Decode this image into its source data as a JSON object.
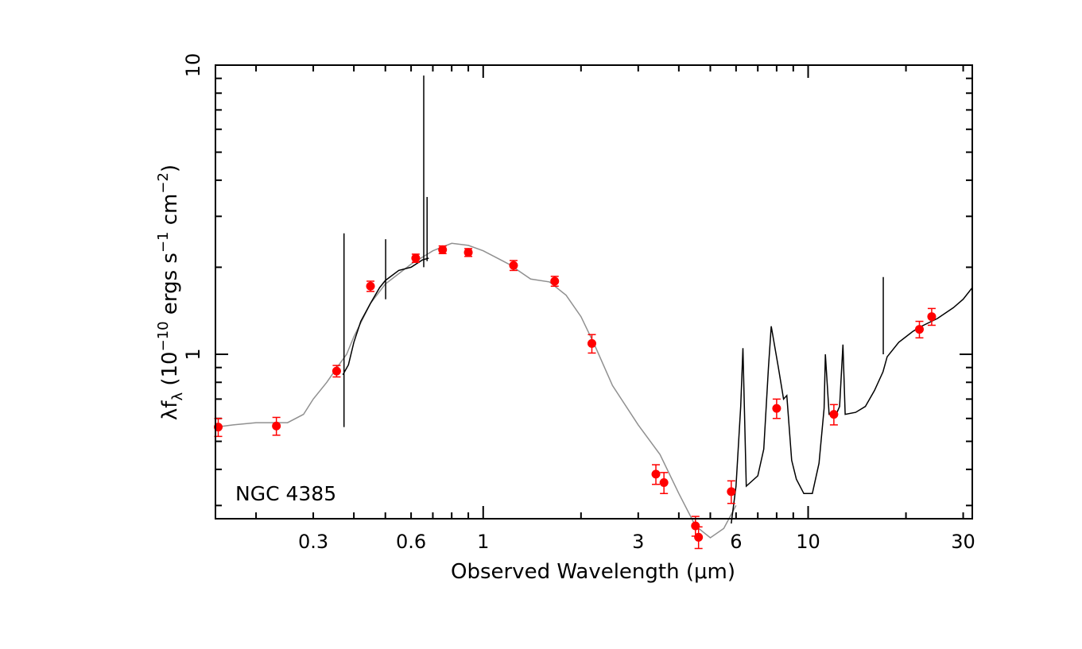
{
  "chart_data": {
    "type": "scatter",
    "title": "",
    "annotation": "NGC 4385",
    "xlabel": "Observed Wavelength (μm)",
    "ylabel": {
      "base": "λf",
      "base_sub": "λ",
      "open": " (10",
      "exp1": "−10",
      "mid": " ergs s",
      "exp2": "−1",
      "mid2": " cm",
      "exp3": "−2",
      "close": ")"
    },
    "x_scale": "log",
    "y_scale": "log",
    "xlim": [
      0.15,
      32
    ],
    "ylim": [
      0.27,
      10
    ],
    "x_tick_labels": [
      {
        "value": 0.3,
        "label": "0.3"
      },
      {
        "value": 0.6,
        "label": "0.6"
      },
      {
        "value": 1,
        "label": "1"
      },
      {
        "value": 3,
        "label": "3"
      },
      {
        "value": 6,
        "label": "6"
      },
      {
        "value": 10,
        "label": "10"
      },
      {
        "value": 30,
        "label": "30"
      }
    ],
    "y_tick_labels": [
      {
        "value": 1,
        "label": "1"
      },
      {
        "value": 10,
        "label": "10"
      }
    ],
    "colors": {
      "points": "#ff0000",
      "errorbars": "#ff0000",
      "model": "#909090",
      "observed_spectrum": "#000000"
    },
    "series": [
      {
        "kind": "photometry",
        "points": [
          {
            "x": 0.153,
            "y": 0.56,
            "err": 0.04
          },
          {
            "x": 0.231,
            "y": 0.565,
            "err": 0.04
          },
          {
            "x": 0.354,
            "y": 0.875,
            "err": 0.04
          },
          {
            "x": 0.45,
            "y": 1.72,
            "err": 0.07
          },
          {
            "x": 0.62,
            "y": 2.15,
            "err": 0.07
          },
          {
            "x": 0.75,
            "y": 2.3,
            "err": 0.07
          },
          {
            "x": 0.9,
            "y": 2.25,
            "err": 0.07
          },
          {
            "x": 1.24,
            "y": 2.03,
            "err": 0.08
          },
          {
            "x": 1.66,
            "y": 1.79,
            "err": 0.07
          },
          {
            "x": 2.16,
            "y": 1.09,
            "err": 0.08
          },
          {
            "x": 3.4,
            "y": 0.385,
            "err": 0.03
          },
          {
            "x": 3.6,
            "y": 0.36,
            "err": 0.03
          },
          {
            "x": 4.5,
            "y": 0.255,
            "err": 0.02
          },
          {
            "x": 4.6,
            "y": 0.233,
            "err": 0.02
          },
          {
            "x": 5.8,
            "y": 0.335,
            "err": 0.03
          },
          {
            "x": 8.0,
            "y": 0.65,
            "err": 0.05
          },
          {
            "x": 12.0,
            "y": 0.62,
            "err": 0.05
          },
          {
            "x": 22.0,
            "y": 1.22,
            "err": 0.08
          },
          {
            "x": 24.0,
            "y": 1.35,
            "err": 0.09
          }
        ]
      },
      {
        "kind": "model",
        "points": [
          [
            0.15,
            0.56
          ],
          [
            0.17,
            0.57
          ],
          [
            0.2,
            0.58
          ],
          [
            0.23,
            0.58
          ],
          [
            0.25,
            0.58
          ],
          [
            0.28,
            0.62
          ],
          [
            0.3,
            0.7
          ],
          [
            0.33,
            0.8
          ],
          [
            0.36,
            0.92
          ],
          [
            0.38,
            1.0
          ],
          [
            0.4,
            1.15
          ],
          [
            0.45,
            1.5
          ],
          [
            0.5,
            1.75
          ],
          [
            0.6,
            2.05
          ],
          [
            0.7,
            2.28
          ],
          [
            0.8,
            2.42
          ],
          [
            0.9,
            2.38
          ],
          [
            1.0,
            2.28
          ],
          [
            1.2,
            2.05
          ],
          [
            1.4,
            1.82
          ],
          [
            1.6,
            1.78
          ],
          [
            1.8,
            1.6
          ],
          [
            2.0,
            1.35
          ],
          [
            2.2,
            1.08
          ],
          [
            2.5,
            0.78
          ],
          [
            3.0,
            0.57
          ],
          [
            3.5,
            0.45
          ],
          [
            4.0,
            0.33
          ],
          [
            4.5,
            0.255
          ],
          [
            5.0,
            0.232
          ],
          [
            5.5,
            0.25
          ],
          [
            6.0,
            0.3
          ]
        ]
      },
      {
        "kind": "observed_spectrum",
        "segments": [
          [
            [
              0.37,
              0.85
            ],
            [
              0.385,
              0.92
            ],
            [
              0.4,
              1.1
            ],
            [
              0.42,
              1.3
            ],
            [
              0.45,
              1.5
            ],
            [
              0.48,
              1.7
            ],
            [
              0.5,
              1.8
            ],
            [
              0.55,
              1.95
            ],
            [
              0.6,
              2.0
            ],
            [
              0.65,
              2.12
            ],
            [
              0.68,
              2.15
            ]
          ],
          [
            [
              5.8,
              0.26
            ],
            [
              6.0,
              0.35
            ],
            [
              6.2,
              0.66
            ],
            [
              6.3,
              1.05
            ],
            [
              6.45,
              0.35
            ],
            [
              7.0,
              0.38
            ],
            [
              7.3,
              0.47
            ],
            [
              7.55,
              0.9
            ],
            [
              7.7,
              1.25
            ],
            [
              8.1,
              0.9
            ],
            [
              8.4,
              0.7
            ],
            [
              8.6,
              0.72
            ],
            [
              8.9,
              0.43
            ],
            [
              9.2,
              0.37
            ],
            [
              9.7,
              0.33
            ],
            [
              10.3,
              0.33
            ],
            [
              10.8,
              0.42
            ],
            [
              11.2,
              0.65
            ],
            [
              11.3,
              1.0
            ],
            [
              11.6,
              0.62
            ],
            [
              12.2,
              0.62
            ],
            [
              12.5,
              0.66
            ],
            [
              12.8,
              1.08
            ],
            [
              13.0,
              0.62
            ],
            [
              14.0,
              0.63
            ],
            [
              15.0,
              0.66
            ],
            [
              16.0,
              0.75
            ],
            [
              17.0,
              0.87
            ],
            [
              17.5,
              0.98
            ],
            [
              19.0,
              1.1
            ],
            [
              20.0,
              1.15
            ],
            [
              21.0,
              1.2
            ],
            [
              22.0,
              1.24
            ],
            [
              25.0,
              1.33
            ],
            [
              28.0,
              1.45
            ],
            [
              30.0,
              1.55
            ],
            [
              32.0,
              1.7
            ]
          ]
        ],
        "emission_lines": [
          {
            "x": 0.373,
            "top": 2.62,
            "bottom": 0.56
          },
          {
            "x": 0.501,
            "top": 2.5,
            "bottom": 1.55
          },
          {
            "x": 0.6563,
            "top": 9.2,
            "bottom": 2.0
          },
          {
            "x": 0.672,
            "top": 3.5,
            "bottom": 2.1
          },
          {
            "x": 17.03,
            "top": 1.85,
            "bottom": 1.0
          }
        ]
      }
    ]
  }
}
